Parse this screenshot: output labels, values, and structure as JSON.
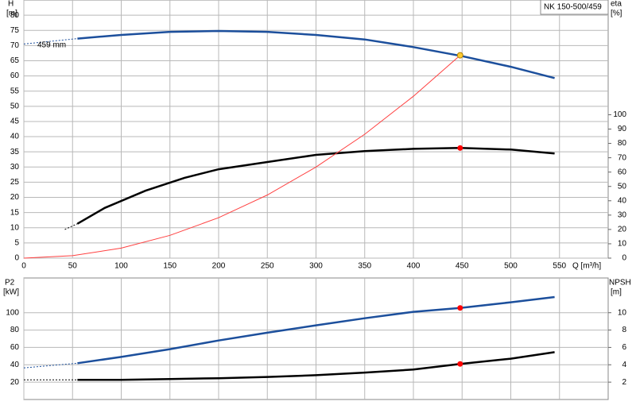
{
  "chart_data": [
    {
      "type": "line",
      "title": "NK 150-500/459",
      "ylabel": "H",
      "yunit": "[m]",
      "y2label": "eta",
      "y2unit": "[%]",
      "xlabel": "Q [m³/h]",
      "annotation": "459 mm",
      "xlim": [
        0,
        600
      ],
      "xticks": [
        0,
        50,
        100,
        150,
        200,
        250,
        300,
        350,
        400,
        450,
        500,
        550
      ],
      "ylim": [
        0,
        85
      ],
      "yticks": [
        0,
        5,
        10,
        15,
        20,
        25,
        30,
        35,
        40,
        45,
        50,
        55,
        60,
        65,
        70,
        75,
        80
      ],
      "y2lim": [
        0,
        180
      ],
      "y2ticks": [
        0,
        10,
        20,
        30,
        40,
        50,
        60,
        70,
        80,
        90,
        100
      ],
      "grid": true,
      "series": [
        {
          "color": "#1c4f9c",
          "dash": true,
          "x": [
            0,
            55
          ],
          "values": [
            70.5,
            72.3
          ]
        },
        {
          "color": "#1c4f9c",
          "x": [
            55,
            100,
            150,
            200,
            250,
            300,
            350,
            400,
            450,
            500,
            545
          ],
          "values": [
            72.3,
            73.5,
            74.5,
            74.8,
            74.5,
            73.5,
            72,
            69.5,
            66.5,
            63,
            59.3
          ]
        },
        {
          "color": "#000000",
          "dash": true,
          "axis": "y2",
          "x": [
            42,
            55
          ],
          "values": [
            20,
            24
          ]
        },
        {
          "color": "#000000",
          "axis": "y2",
          "x": [
            55,
            83,
            125,
            165,
            200,
            250,
            300,
            350,
            400,
            448,
            500,
            545
          ],
          "values": [
            24,
            35,
            47,
            56,
            62,
            67,
            72,
            74.6,
            76.2,
            76.8,
            75.7,
            73
          ]
        },
        {
          "color": "#ff4040",
          "thin": true,
          "x": [
            0,
            50,
            100,
            150,
            200,
            250,
            300,
            350,
            400,
            448
          ],
          "values": [
            0,
            0.8,
            3.3,
            7.5,
            13.3,
            20.8,
            30,
            40.8,
            53.3,
            66.8
          ]
        }
      ],
      "points": [
        {
          "x": 448,
          "y": 66.8,
          "color": "#ffcc33"
        },
        {
          "x": 448,
          "y": 76.8,
          "color": "#ff0000",
          "axis": "y2"
        }
      ]
    },
    {
      "type": "line",
      "ylabel": "P2",
      "yunit": "[kW]",
      "y2label": "NPSH",
      "y2unit": "[m]",
      "xlim": [
        0,
        600
      ],
      "ylim": [
        0,
        140
      ],
      "yticks": [
        20,
        40,
        60,
        80,
        100
      ],
      "y2lim": [
        0,
        14
      ],
      "y2ticks": [
        2,
        4,
        6,
        8,
        10
      ],
      "grid": true,
      "series": [
        {
          "color": "#1c4f9c",
          "dash": true,
          "x": [
            0,
            55
          ],
          "values": [
            36.4,
            41.8
          ]
        },
        {
          "color": "#1c4f9c",
          "x": [
            55,
            100,
            150,
            200,
            250,
            300,
            350,
            400,
            448,
            500,
            545
          ],
          "values": [
            41.8,
            49,
            58,
            68,
            77,
            85.5,
            93.6,
            101,
            105.5,
            112,
            118
          ]
        },
        {
          "color": "#000000",
          "dash": true,
          "axis": "y2",
          "x": [
            0,
            55
          ],
          "values": [
            2.27,
            2.27
          ]
        },
        {
          "color": "#000000",
          "axis": "y2",
          "x": [
            55,
            100,
            150,
            200,
            250,
            300,
            350,
            400,
            448,
            500,
            545
          ],
          "values": [
            2.27,
            2.27,
            2.36,
            2.45,
            2.6,
            2.8,
            3.1,
            3.45,
            4.1,
            4.7,
            5.45
          ]
        }
      ],
      "points": [
        {
          "x": 448,
          "y": 105.5,
          "color": "#ff0000"
        },
        {
          "x": 448,
          "y": 4.1,
          "color": "#ff0000",
          "axis": "y2"
        }
      ]
    }
  ]
}
